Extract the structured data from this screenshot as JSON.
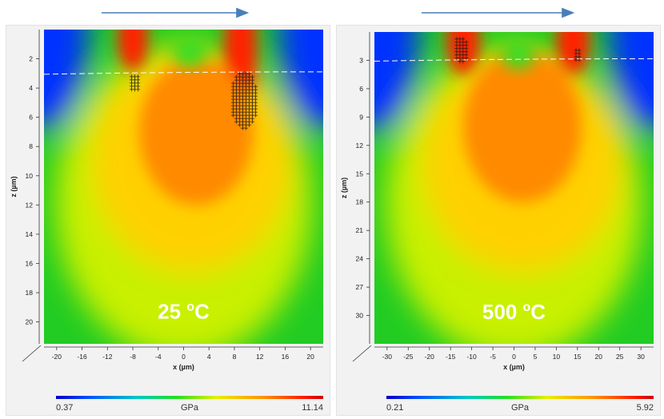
{
  "colors": {
    "arrow": "#4a7ebb",
    "panel_bg": "#f2f2f2",
    "contour": "#ffffff",
    "hatch": "#1a1a1a"
  },
  "chart_data": [
    {
      "type": "heatmap",
      "colormap": "jet",
      "annotation": {
        "value": "25",
        "unit": "C",
        "sup": "o"
      },
      "xlabel": "x (µm)",
      "ylabel": "z (µm)",
      "xlim": [
        -22,
        22
      ],
      "ylim": [
        21.5,
        0
      ],
      "x_ticks": [
        -20,
        -16,
        -12,
        -8,
        -4,
        0,
        4,
        8,
        12,
        16,
        20
      ],
      "y_ticks": [
        2,
        4,
        6,
        8,
        10,
        12,
        14,
        16,
        18,
        20
      ],
      "colorbar": {
        "min": "0.37",
        "max": "11.14",
        "unit": "GPa"
      },
      "hotspots": [
        {
          "x": -8,
          "z": 0.6,
          "rx": 2.4,
          "rz": 2.2,
          "level": 1.0
        },
        {
          "x": 9,
          "z": 1.2,
          "rx": 2.6,
          "rz": 3.8,
          "level": 1.0
        },
        {
          "x": 2,
          "z": 7.0,
          "rx": 9.0,
          "rz": 5.0,
          "level": 0.7
        }
      ],
      "hatch_regions": [
        {
          "x": -8.0,
          "z": 1.6,
          "rx": 0.2,
          "rz": 0.2
        },
        {
          "x": -7.7,
          "z": 3.6,
          "rx": 1.0,
          "rz": 0.6
        },
        {
          "x": 9.5,
          "z": 4.8,
          "rx": 2.2,
          "rz": 2.0
        }
      ],
      "dashed_line_z": 3.0
    },
    {
      "type": "heatmap",
      "colormap": "jet",
      "annotation": {
        "value": "500",
        "unit": "C",
        "sup": "o"
      },
      "xlabel": "x (µm)",
      "ylabel": "z (µm)",
      "xlim": [
        -33,
        33
      ],
      "ylim": [
        33,
        0
      ],
      "x_ticks": [
        -30,
        -25,
        -20,
        -15,
        -10,
        -5,
        0,
        5,
        10,
        15,
        20,
        25,
        30
      ],
      "y_ticks": [
        3,
        6,
        9,
        12,
        15,
        18,
        21,
        24,
        27,
        30
      ],
      "colorbar": {
        "min": "0.21",
        "max": "5.92",
        "unit": "GPa"
      },
      "hotspots": [
        {
          "x": -12,
          "z": 1.0,
          "rx": 4.0,
          "rz": 3.5,
          "level": 1.0
        },
        {
          "x": 14,
          "z": 1.0,
          "rx": 4.0,
          "rz": 3.5,
          "level": 1.0
        },
        {
          "x": 2,
          "z": 10.0,
          "rx": 14.0,
          "rz": 8.0,
          "level": 0.68
        }
      ],
      "hatch_regions": [
        {
          "x": -12.5,
          "z": 1.8,
          "rx": 1.8,
          "rz": 1.4
        },
        {
          "x": 14.8,
          "z": 2.4,
          "rx": 0.9,
          "rz": 0.8
        }
      ],
      "dashed_line_z": 3.0
    }
  ]
}
